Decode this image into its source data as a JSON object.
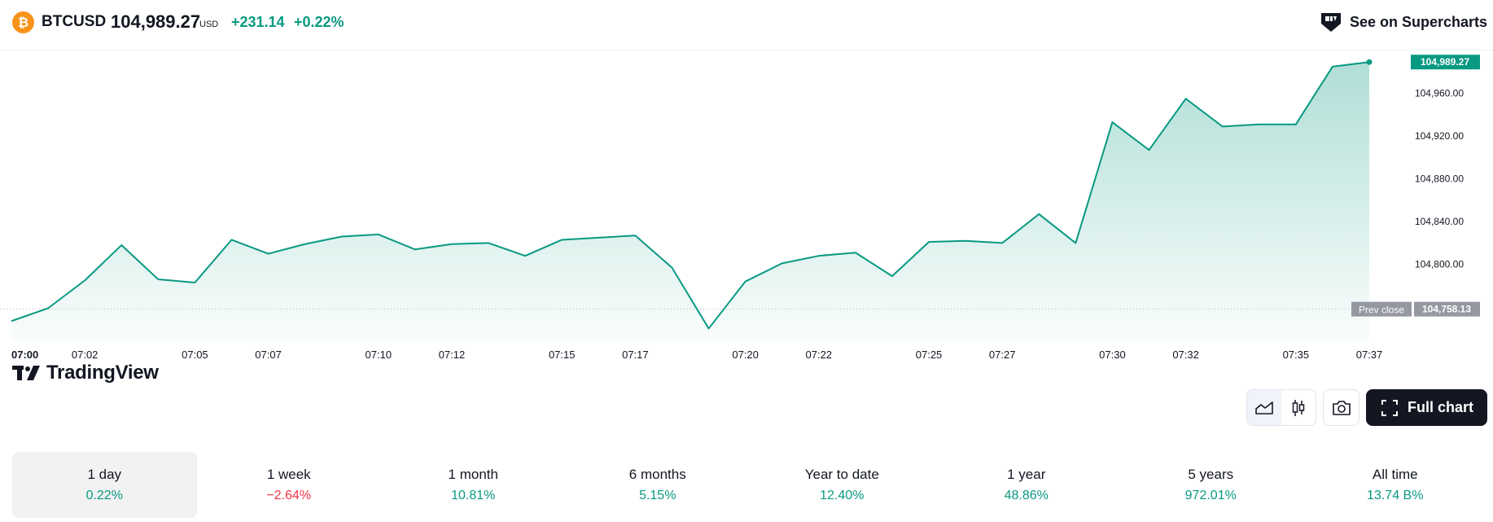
{
  "header": {
    "coin_icon_symbol": "₿",
    "symbol": "BTCUSD",
    "price": "104,989.27",
    "currency": "USD",
    "change_abs": "+231.14",
    "change_pct": "+0.22%",
    "supercharts_label": "See on Supercharts"
  },
  "logo": {
    "text": "TradingView"
  },
  "colors": {
    "accent": "#089981",
    "negative": "#f23645",
    "prev_close_badge": "#9598a1",
    "coin": "#f7931a",
    "dark_button": "#131722"
  },
  "chart_data": {
    "type": "area",
    "x": [
      "07:00",
      "07:01",
      "07:02",
      "07:03",
      "07:04",
      "07:05",
      "07:06",
      "07:07",
      "07:08",
      "07:09",
      "07:10",
      "07:11",
      "07:12",
      "07:13",
      "07:14",
      "07:15",
      "07:16",
      "07:17",
      "07:18",
      "07:19",
      "07:20",
      "07:21",
      "07:22",
      "07:23",
      "07:24",
      "07:25",
      "07:26",
      "07:27",
      "07:28",
      "07:29",
      "07:30",
      "07:31",
      "07:32",
      "07:33",
      "07:34",
      "07:35",
      "07:36",
      "07:37"
    ],
    "values": [
      104747,
      104759,
      104785,
      104818,
      104786,
      104783,
      104823,
      104810,
      104819,
      104826,
      104828,
      104814,
      104819,
      104820,
      104808,
      104823,
      104825,
      104827,
      104797,
      104740,
      104784,
      104801,
      104808,
      104811,
      104789,
      104821,
      104822,
      104820,
      104847,
      104820,
      104933,
      104907,
      104955,
      104929,
      104931,
      104931,
      104985,
      104989.27
    ],
    "x_ticks": [
      "07:00",
      "07:02",
      "07:05",
      "07:07",
      "07:10",
      "07:12",
      "07:15",
      "07:17",
      "07:20",
      "07:22",
      "07:25",
      "07:27",
      "07:30",
      "07:32",
      "07:35",
      "07:37"
    ],
    "y_ticks": [
      "104,800.00",
      "104,840.00",
      "104,880.00",
      "104,920.00",
      "104,960.00"
    ],
    "y_tick_values": [
      104800,
      104840,
      104880,
      104920,
      104960
    ],
    "ylim": [
      104735,
      104994
    ],
    "last_price_label": "104,989.27",
    "last_price_value": 104989.27,
    "prev_close": {
      "label": "Prev close",
      "value_label": "104,758.13",
      "value": 104758.13
    },
    "line_color": "#089981"
  },
  "controls": {
    "line_chart_icon": "area-chart-icon",
    "candle_icon": "candlestick-icon",
    "camera_icon": "camera-icon",
    "full_chart_label": "Full chart"
  },
  "periods": [
    {
      "label": "1 day",
      "value": "0.22%",
      "sign": "pos",
      "active": true
    },
    {
      "label": "1 week",
      "value": "−2.64%",
      "sign": "neg",
      "active": false
    },
    {
      "label": "1 month",
      "value": "10.81%",
      "sign": "pos",
      "active": false
    },
    {
      "label": "6 months",
      "value": "5.15%",
      "sign": "pos",
      "active": false
    },
    {
      "label": "Year to date",
      "value": "12.40%",
      "sign": "pos",
      "active": false
    },
    {
      "label": "1 year",
      "value": "48.86%",
      "sign": "pos",
      "active": false
    },
    {
      "label": "5 years",
      "value": "972.01%",
      "sign": "pos",
      "active": false
    },
    {
      "label": "All time",
      "value": "13.74 B%",
      "sign": "pos",
      "active": false
    }
  ]
}
